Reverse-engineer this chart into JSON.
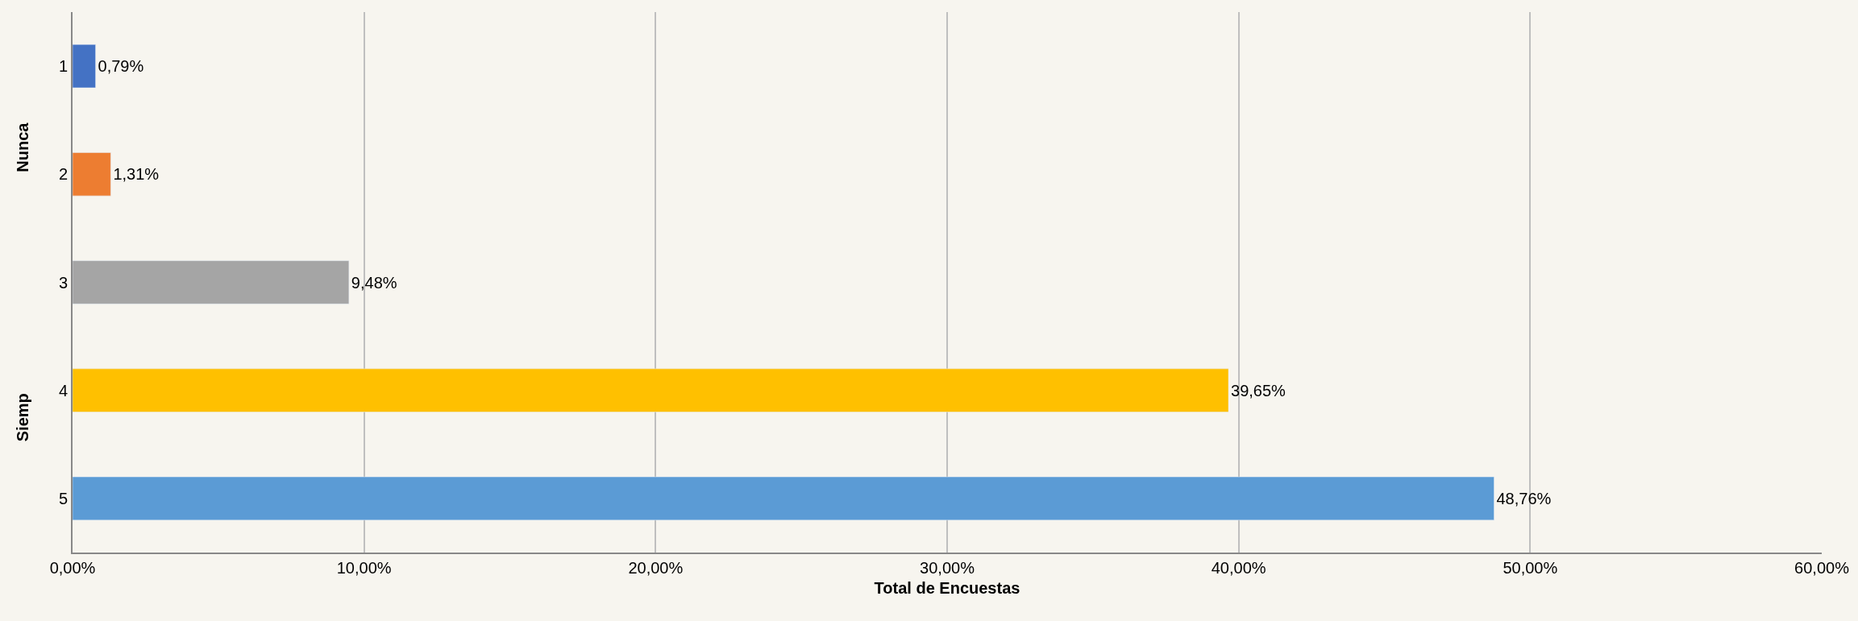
{
  "chart_data": {
    "type": "bar",
    "orientation": "horizontal",
    "xlabel": "Total de Encuestas",
    "categories": [
      "1",
      "2",
      "3",
      "4",
      "5"
    ],
    "values": [
      0.79,
      1.31,
      9.48,
      39.65,
      48.76
    ],
    "colors": [
      "#4472c4",
      "#ed7d31",
      "#a5a5a5",
      "#ffc000",
      "#5b9bd5"
    ],
    "value_labels": [
      "0,79%",
      "1,31%",
      "9,48%",
      "39,65%",
      "48,76%"
    ],
    "xlim": [
      0,
      60
    ],
    "xticks": [
      {
        "value": 0,
        "label": "0,00%"
      },
      {
        "value": 10,
        "label": "10,00%"
      },
      {
        "value": 20,
        "label": "20,00%"
      },
      {
        "value": 30,
        "label": "30,00%"
      },
      {
        "value": 40,
        "label": "40,00%"
      },
      {
        "value": 50,
        "label": "50,00%"
      },
      {
        "value": 60,
        "label": "60,00%"
      }
    ],
    "grid": "x",
    "legend": false,
    "annotations": [
      "Nunca",
      "Siemp"
    ]
  }
}
